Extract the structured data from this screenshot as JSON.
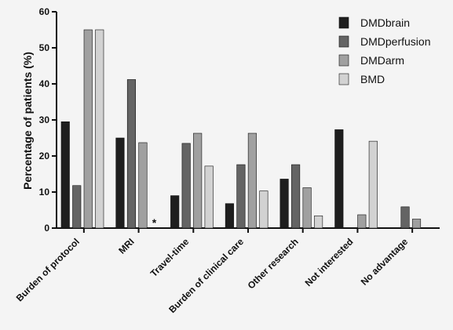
{
  "chart_data": {
    "type": "bar",
    "title": "",
    "xlabel": "",
    "ylabel": "Percentage of patients (%)",
    "ylim": [
      0,
      60
    ],
    "yticks": [
      "0",
      "10",
      "20",
      "30",
      "40",
      "50",
      "60"
    ],
    "categories": [
      "Burden of protocol",
      "MRI",
      "Travel-time",
      "Burden of clinical care",
      "Other research",
      "Not interested",
      "No advantage"
    ],
    "series": [
      {
        "name": "DMDbrain",
        "color": "#1e1e1e",
        "values": [
          29.5,
          25,
          9,
          6.8,
          13.6,
          27.3,
          0
        ]
      },
      {
        "name": "DMDperfusion",
        "color": "#646464",
        "values": [
          11.8,
          41.2,
          23.5,
          17.6,
          17.6,
          0,
          5.9
        ]
      },
      {
        "name": "DMDarm",
        "color": "#a0a0a0",
        "values": [
          55,
          23.7,
          26.3,
          26.3,
          11.2,
          3.7,
          2.5
        ]
      },
      {
        "name": "BMD",
        "color": "#d2d2d2",
        "values": [
          55,
          null,
          17.2,
          10.3,
          3.4,
          24.1,
          null
        ]
      }
    ],
    "annotations": [
      {
        "text": "*",
        "category": "MRI",
        "series": "BMD"
      }
    ],
    "legend_position": "top-right",
    "grid": false
  }
}
